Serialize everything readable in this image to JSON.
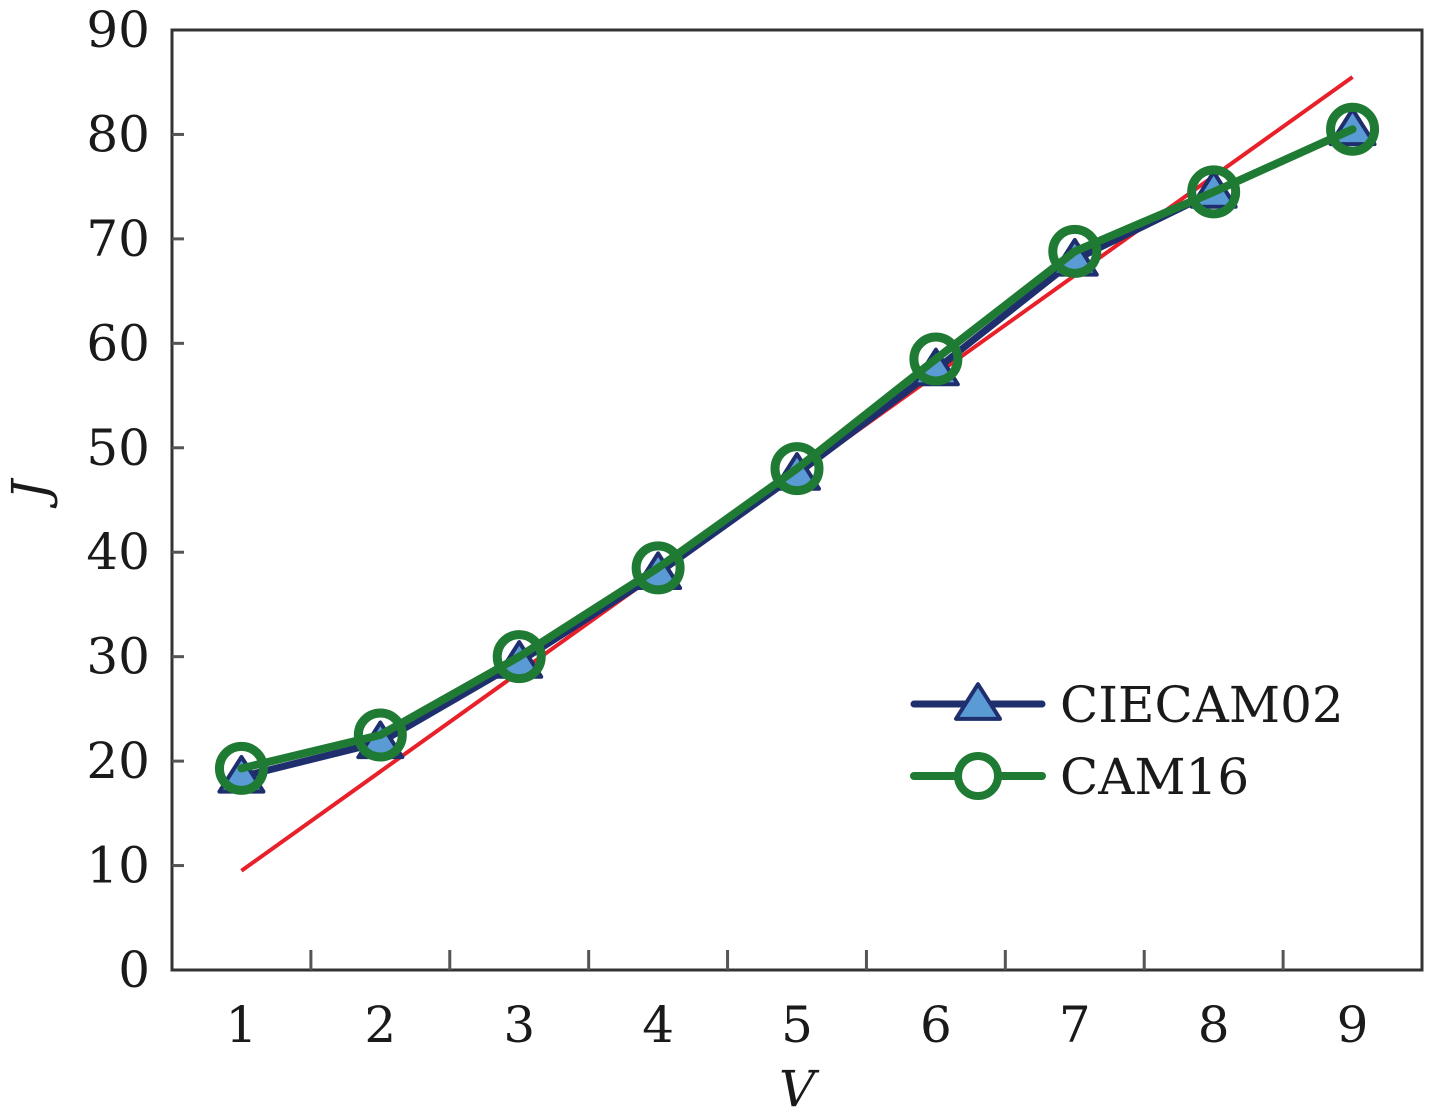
{
  "chart_data": {
    "type": "line",
    "xlabel": "V",
    "ylabel": "J",
    "x": [
      1,
      2,
      3,
      4,
      5,
      6,
      7,
      8,
      9
    ],
    "xlim": [
      0.5,
      9.5
    ],
    "ylim": [
      0,
      90
    ],
    "x_ticks": [
      "1",
      "2",
      "3",
      "4",
      "5",
      "6",
      "7",
      "8",
      "9"
    ],
    "y_ticks": [
      "0",
      "10",
      "20",
      "30",
      "40",
      "50",
      "60",
      "70",
      "80",
      "90"
    ],
    "grid": false,
    "legend_position": "bottom-right",
    "series": [
      {
        "name": "CIECAM02",
        "marker": "triangle",
        "color": "#1f2f6e",
        "marker_fill": "#5b9bd5",
        "values": [
          18.5,
          21.8,
          29.5,
          38.0,
          47.5,
          57.5,
          68.0,
          74.5,
          80.5
        ]
      },
      {
        "name": "CAM16",
        "marker": "circle",
        "color": "#1f7a34",
        "marker_fill": "none",
        "values": [
          19.3,
          22.5,
          30.0,
          38.5,
          48.0,
          58.5,
          68.8,
          74.5,
          80.5
        ]
      }
    ],
    "fit_line": {
      "color": "#e8202a",
      "x": [
        1,
        9
      ],
      "y": [
        9.5,
        85.5
      ]
    }
  }
}
